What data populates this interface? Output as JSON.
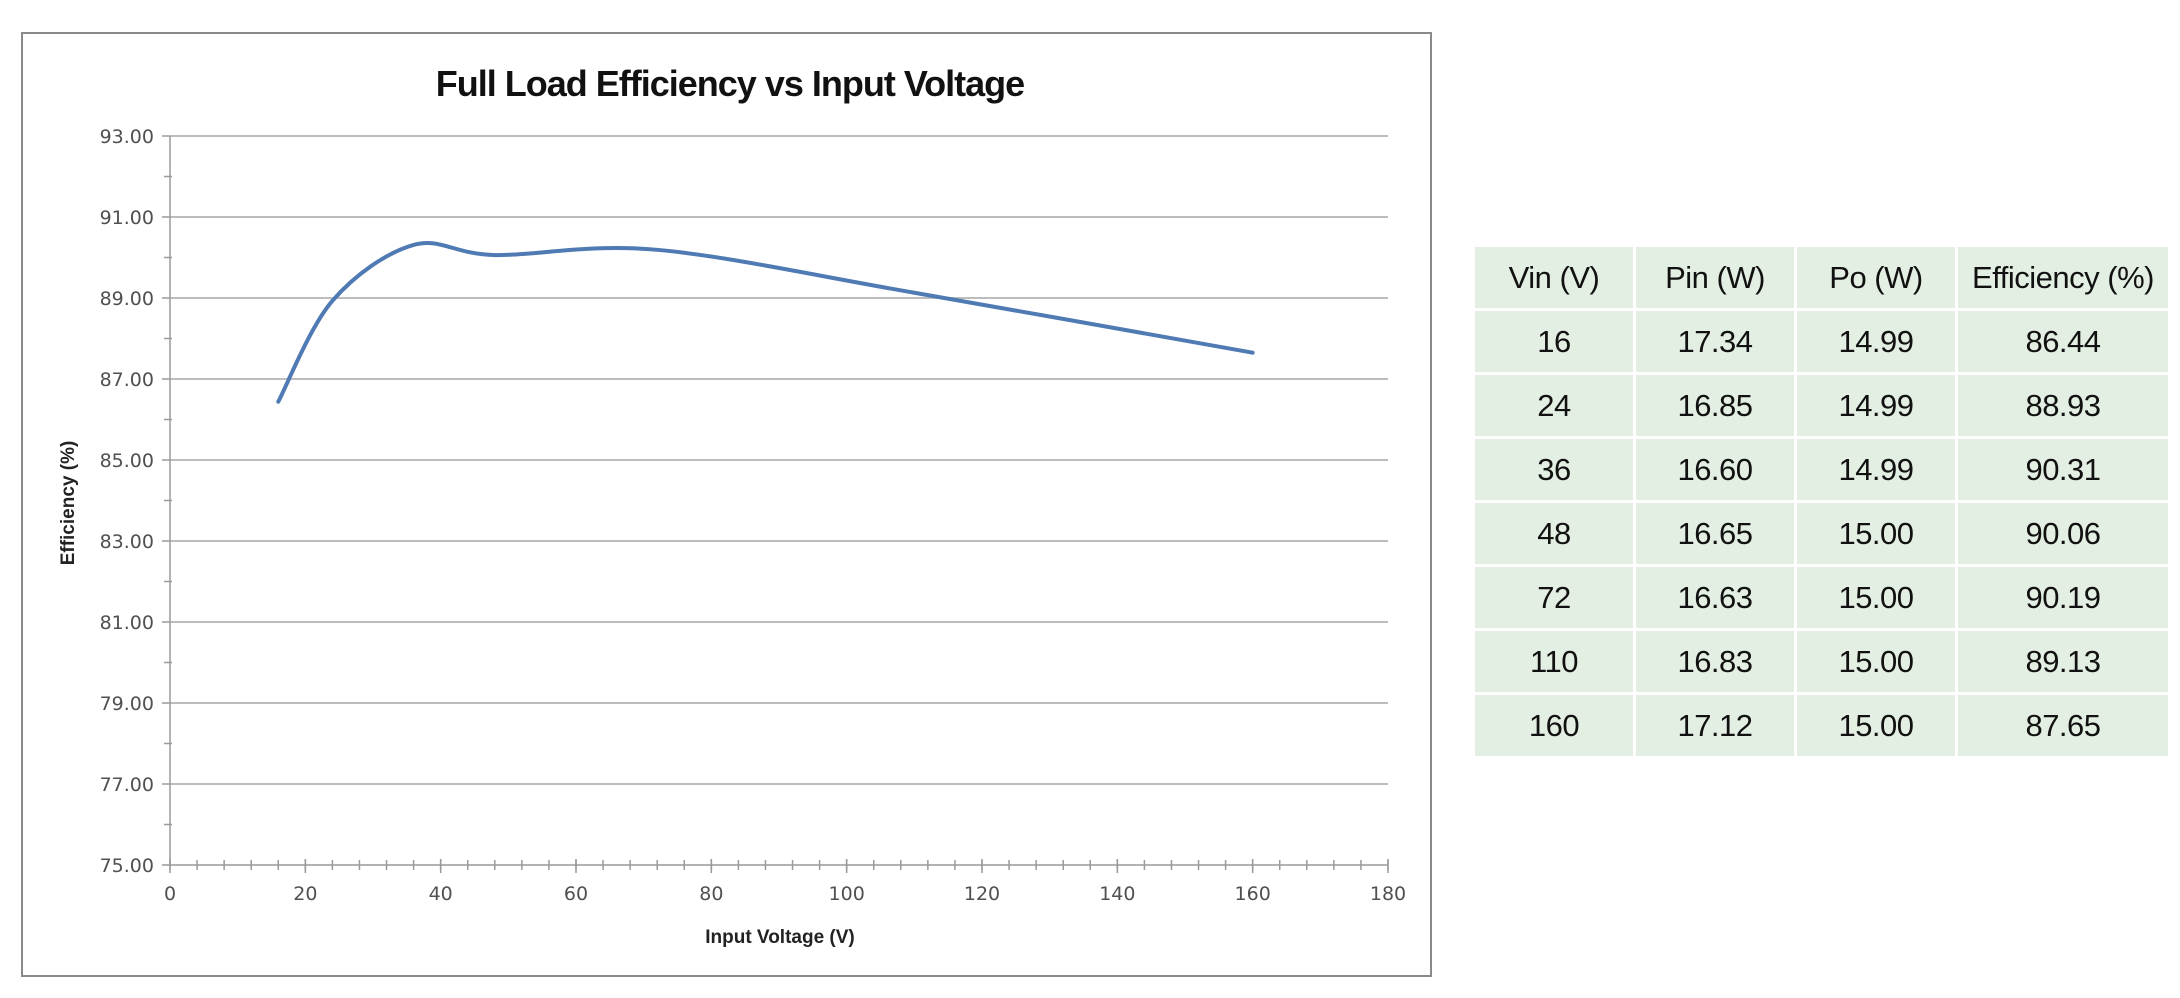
{
  "chart_data": {
    "type": "line",
    "title": "Full Load Efficiency vs Input Voltage",
    "xlabel": "Input Voltage (V)",
    "ylabel": "Efficiency (%)",
    "xlim": [
      0,
      180
    ],
    "ylim": [
      75,
      93
    ],
    "x_ticks": [
      "0",
      "20",
      "40",
      "60",
      "80",
      "100",
      "120",
      "140",
      "160",
      "180"
    ],
    "y_ticks": [
      "75.00",
      "77.00",
      "79.00",
      "81.00",
      "83.00",
      "85.00",
      "87.00",
      "89.00",
      "91.00",
      "93.00"
    ],
    "grid": "horizontal major",
    "legend": "none",
    "series": [
      {
        "name": "Efficiency",
        "color": "#4f7ab3",
        "smooth": true,
        "x": [
          16,
          24,
          36,
          48,
          72,
          110,
          160
        ],
        "y": [
          86.44,
          88.93,
          90.31,
          90.06,
          90.19,
          89.13,
          87.65
        ]
      }
    ]
  },
  "table": {
    "headers": [
      "Vin (V)",
      "Pin (W)",
      "Po (W)",
      "Efficiency (%)"
    ],
    "rows": [
      [
        "16",
        "17.34",
        "14.99",
        "86.44"
      ],
      [
        "24",
        "16.85",
        "14.99",
        "88.93"
      ],
      [
        "36",
        "16.60",
        "14.99",
        "90.31"
      ],
      [
        "48",
        "16.65",
        "15.00",
        "90.06"
      ],
      [
        "72",
        "16.63",
        "15.00",
        "90.19"
      ],
      [
        "110",
        "16.83",
        "15.00",
        "89.13"
      ],
      [
        "160",
        "17.12",
        "15.00",
        "87.65"
      ]
    ],
    "cell_color": "#e3efe3"
  }
}
